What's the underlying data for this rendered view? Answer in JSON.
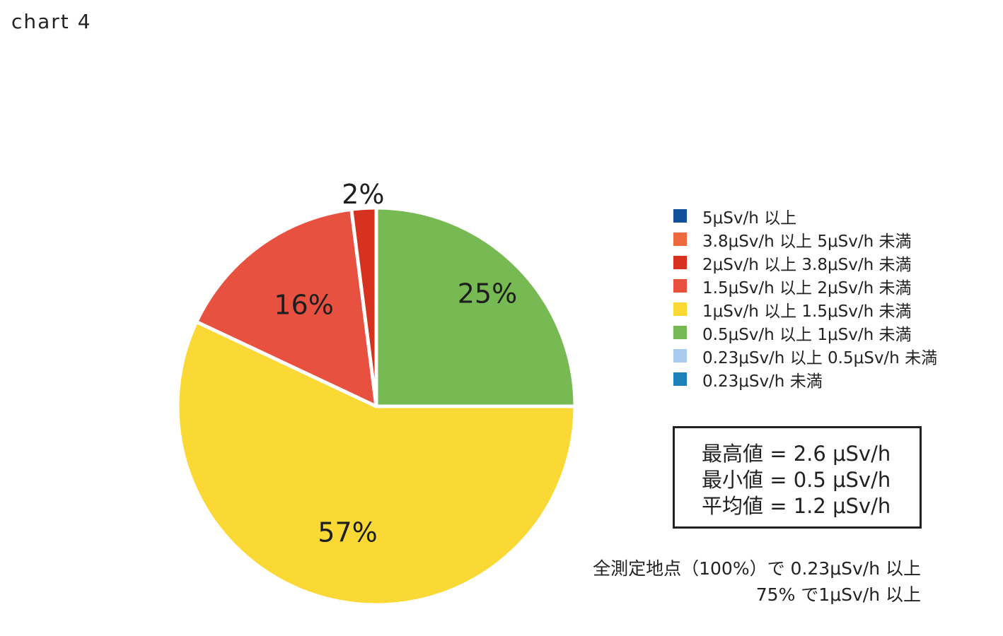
{
  "title": "chart 4",
  "chart_data": {
    "type": "pie",
    "title": "chart 4",
    "start_angle_deg": 0,
    "direction": "clockwise",
    "slices": [
      {
        "label": "5μSv/h 以上",
        "value": 0,
        "pct_label": "",
        "color": "#13509a"
      },
      {
        "label": "3.8μSv/h 以上 5μSv/h 未満",
        "value": 0,
        "pct_label": "",
        "color": "#ec6a3d"
      },
      {
        "label": "2μSv/h 以上 3.8μSv/h 未満",
        "value": 2,
        "pct_label": "2%",
        "color": "#d7311f"
      },
      {
        "label": "1.5μSv/h 以上 2μSv/h 未満",
        "value": 16,
        "pct_label": "16%",
        "color": "#e8513f"
      },
      {
        "label": "1μSv/h 以上 1.5μSv/h 未満",
        "value": 57,
        "pct_label": "57%",
        "color": "#fbd934"
      },
      {
        "label": "0.5μSv/h 以上 1μSv/h 未満",
        "value": 25,
        "pct_label": "25%",
        "color": "#77b952"
      },
      {
        "label": "0.23μSv/h 以上 0.5μSv/h 未満",
        "value": 0,
        "pct_label": "",
        "color": "#a9cbee"
      },
      {
        "label": "0.23μSv/h 未満",
        "value": 0,
        "pct_label": "",
        "color": "#1d80bb"
      }
    ],
    "legend_position": "right"
  },
  "stats": {
    "max": "最高値 = 2.6 μSv/h",
    "min": "最小値 = 0.5 μSv/h",
    "avg": "平均値 = 1.2 μSv/h"
  },
  "summary": {
    "line1": "全測定地点（100%）で 0.23μSv/h 以上",
    "line2": "75% で1μSv/h 以上"
  }
}
